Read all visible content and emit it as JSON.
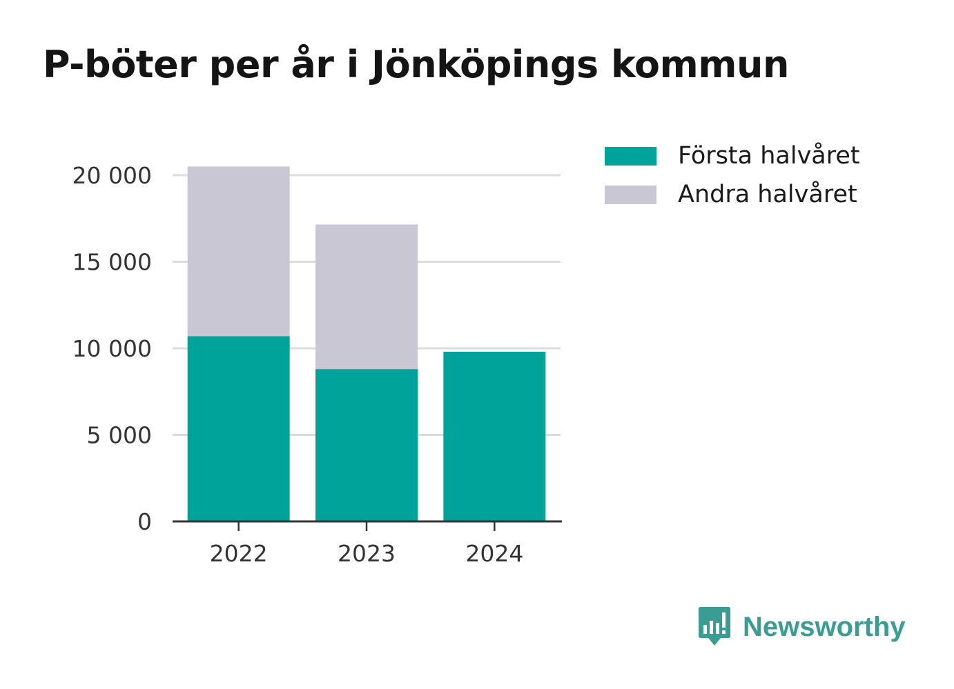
{
  "title": "P-böter per år i Jönköpings kommun",
  "brand": {
    "name": "Newsworthy",
    "logo_icon": "bar-chart-speech-bubble-icon",
    "color": "#3a9d94"
  },
  "chart_data": {
    "type": "bar",
    "stacked": true,
    "categories": [
      "2022",
      "2023",
      "2024"
    ],
    "series": [
      {
        "name": "Första halvåret",
        "color": "#00a39a",
        "values": [
          10700,
          8800,
          9800
        ]
      },
      {
        "name": "Andra halvåret",
        "color": "#c8c7d3",
        "values": [
          9800,
          8350,
          0
        ]
      }
    ],
    "ylim": [
      0,
      20000
    ],
    "yticks": [
      0,
      5000,
      10000,
      15000,
      20000
    ],
    "ytick_labels": [
      "0",
      "5 000",
      "10 000",
      "15 000",
      "20 000"
    ],
    "xlabel": "",
    "ylabel": "",
    "grid": true,
    "legend_position": "top-right"
  }
}
